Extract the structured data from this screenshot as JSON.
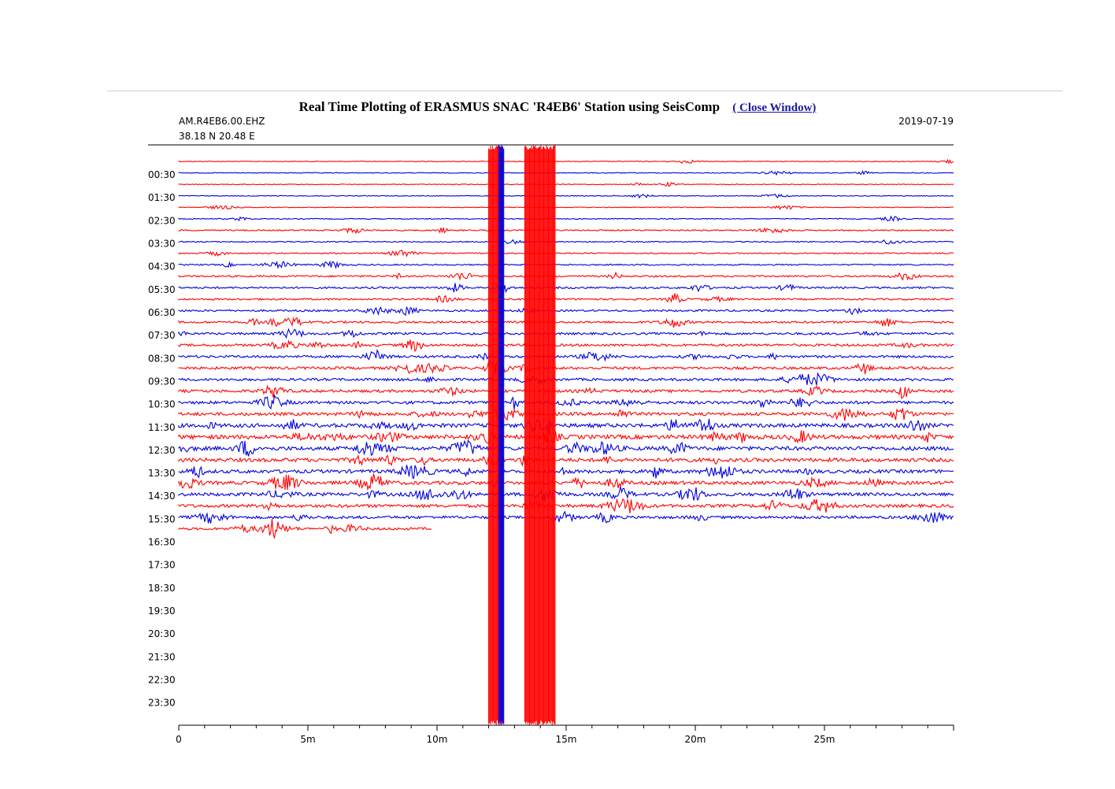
{
  "header": {
    "title": "Real Time Plotting of ERASMUS SNAC 'R4EB6' Station using SeisComp",
    "close_label": "( Close Window)"
  },
  "chart_data": {
    "type": "line",
    "station_code": "AM.R4EB6.00.EHZ",
    "location": "38.18 N 20.48 E",
    "date": "2019-07-19",
    "xlim": [
      0,
      30
    ],
    "x_ticks": [
      "0",
      "5m",
      "10m",
      "15m",
      "20m",
      "25m"
    ],
    "x_tick_values": [
      0,
      5,
      10,
      15,
      20,
      25
    ],
    "y_tick_labels": [
      "00:30",
      "01:30",
      "02:30",
      "03:30",
      "04:30",
      "05:30",
      "06:30",
      "07:30",
      "08:30",
      "09:30",
      "10:30",
      "11:30",
      "12:30",
      "13:30",
      "14:30",
      "15:30",
      "16:30",
      "17:30",
      "18:30",
      "19:30",
      "20:30",
      "21:30",
      "22:30",
      "23:30"
    ],
    "trace_interval_minutes": 30,
    "traces_recorded": 33,
    "last_trace_end_minute": 9.8,
    "colors": {
      "even_trace": "#ff0000",
      "odd_trace": "#0000dd",
      "axis": "#000000"
    },
    "trace_activity": [
      0.02,
      0.03,
      0.02,
      0.03,
      0.03,
      0.08,
      0.18,
      0.12,
      0.15,
      0.2,
      0.3,
      0.35,
      0.3,
      0.35,
      0.4,
      0.45,
      0.5,
      0.5,
      0.55,
      0.55,
      0.6,
      0.65,
      0.7,
      0.9,
      1.0,
      0.9,
      0.85,
      0.8,
      0.8,
      0.75,
      0.7,
      0.6,
      0.5
    ],
    "events": [
      {
        "minute": 12.0,
        "end_minute": 12.55,
        "note": "saturated red burst"
      },
      {
        "minute": 12.4,
        "end_minute": 12.6,
        "note": "saturated blue burst"
      },
      {
        "minute": 13.4,
        "end_minute": 14.6,
        "note": "saturated red burst"
      }
    ]
  }
}
